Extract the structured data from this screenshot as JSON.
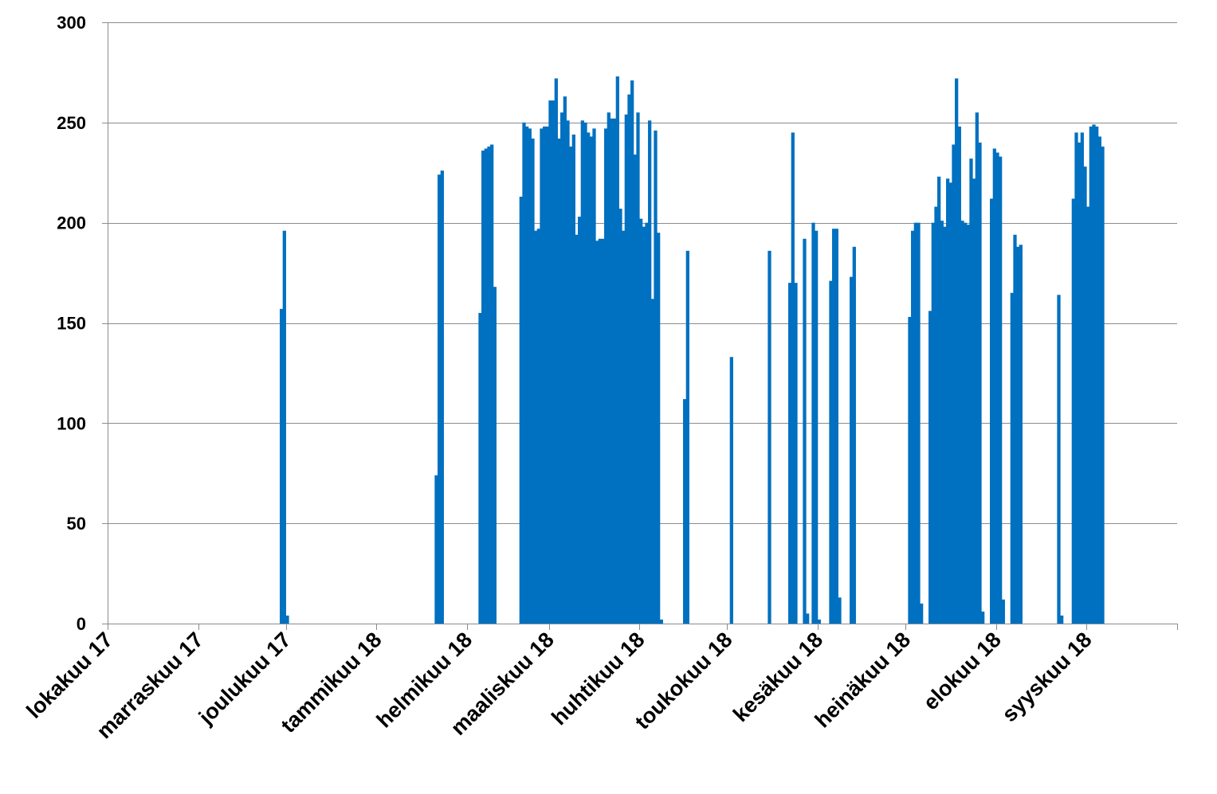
{
  "chart_data": {
    "type": "bar",
    "title": "",
    "xlabel": "",
    "ylabel": "",
    "ylim": [
      0,
      300
    ],
    "yticks": [
      0,
      50,
      100,
      150,
      200,
      250,
      300
    ],
    "grid": true,
    "legend": "none",
    "bar_color": "#0070C0",
    "x_tick_labels": [
      "lokakuu 17",
      "marraskuu 17",
      "joulukuu 17",
      "tammikuu 18",
      "helmikuu 18",
      "maaliskuu 18",
      "huhtikuu 18",
      "toukokuu 18",
      "kesäkuu 18",
      "heinäkuu 18",
      "elokuu 18",
      "syyskuu 18"
    ],
    "x_tick_day_index": [
      0,
      31,
      61,
      92,
      123,
      151,
      182,
      212,
      243,
      273,
      304,
      335
    ],
    "x_range_days": [
      0,
      366
    ],
    "series": [
      {
        "values": [
          [
            59,
            157
          ],
          [
            60,
            196
          ],
          [
            61,
            4
          ],
          [
            112,
            74
          ],
          [
            113,
            224
          ],
          [
            114,
            226
          ],
          [
            127,
            155
          ],
          [
            128,
            236
          ],
          [
            129,
            237
          ],
          [
            130,
            238
          ],
          [
            131,
            239
          ],
          [
            132,
            168
          ],
          [
            141,
            213
          ],
          [
            142,
            250
          ],
          [
            143,
            248
          ],
          [
            144,
            247
          ],
          [
            145,
            242
          ],
          [
            146,
            196
          ],
          [
            147,
            197
          ],
          [
            148,
            247
          ],
          [
            149,
            248
          ],
          [
            150,
            248
          ],
          [
            151,
            261
          ],
          [
            152,
            261
          ],
          [
            153,
            272
          ],
          [
            154,
            242
          ],
          [
            155,
            255
          ],
          [
            156,
            263
          ],
          [
            157,
            251
          ],
          [
            158,
            238
          ],
          [
            159,
            244
          ],
          [
            160,
            194
          ],
          [
            161,
            203
          ],
          [
            162,
            251
          ],
          [
            163,
            250
          ],
          [
            164,
            245
          ],
          [
            165,
            243
          ],
          [
            166,
            247
          ],
          [
            167,
            191
          ],
          [
            168,
            192
          ],
          [
            169,
            192
          ],
          [
            170,
            247
          ],
          [
            171,
            255
          ],
          [
            172,
            252
          ],
          [
            173,
            252
          ],
          [
            174,
            273
          ],
          [
            175,
            207
          ],
          [
            176,
            196
          ],
          [
            177,
            254
          ],
          [
            178,
            264
          ],
          [
            179,
            271
          ],
          [
            180,
            234
          ],
          [
            181,
            255
          ],
          [
            182,
            202
          ],
          [
            183,
            198
          ],
          [
            184,
            200
          ],
          [
            185,
            251
          ],
          [
            186,
            162
          ],
          [
            187,
            246
          ],
          [
            188,
            195
          ],
          [
            189,
            2
          ],
          [
            197,
            112
          ],
          [
            198,
            186
          ],
          [
            213,
            133
          ],
          [
            226,
            186
          ],
          [
            233,
            170
          ],
          [
            234,
            245
          ],
          [
            235,
            170
          ],
          [
            238,
            192
          ],
          [
            239,
            5
          ],
          [
            241,
            200
          ],
          [
            242,
            196
          ],
          [
            243,
            2
          ],
          [
            247,
            171
          ],
          [
            248,
            197
          ],
          [
            249,
            197
          ],
          [
            250,
            13
          ],
          [
            254,
            173
          ],
          [
            255,
            188
          ],
          [
            274,
            153
          ],
          [
            275,
            196
          ],
          [
            276,
            200
          ],
          [
            277,
            200
          ],
          [
            278,
            10
          ],
          [
            281,
            156
          ],
          [
            282,
            200
          ],
          [
            283,
            208
          ],
          [
            284,
            223
          ],
          [
            285,
            201
          ],
          [
            286,
            198
          ],
          [
            287,
            222
          ],
          [
            288,
            220
          ],
          [
            289,
            239
          ],
          [
            290,
            272
          ],
          [
            291,
            248
          ],
          [
            292,
            201
          ],
          [
            293,
            200
          ],
          [
            294,
            199
          ],
          [
            295,
            232
          ],
          [
            296,
            222
          ],
          [
            297,
            255
          ],
          [
            298,
            240
          ],
          [
            299,
            6
          ],
          [
            302,
            212
          ],
          [
            303,
            237
          ],
          [
            304,
            235
          ],
          [
            305,
            233
          ],
          [
            306,
            12
          ],
          [
            309,
            165
          ],
          [
            310,
            194
          ],
          [
            311,
            188
          ],
          [
            312,
            189
          ],
          [
            325,
            164
          ],
          [
            326,
            4
          ],
          [
            330,
            212
          ],
          [
            331,
            245
          ],
          [
            332,
            240
          ],
          [
            333,
            245
          ],
          [
            334,
            228
          ],
          [
            335,
            208
          ],
          [
            336,
            248
          ],
          [
            337,
            249
          ],
          [
            338,
            248
          ],
          [
            339,
            243
          ],
          [
            340,
            238
          ]
        ]
      }
    ]
  }
}
